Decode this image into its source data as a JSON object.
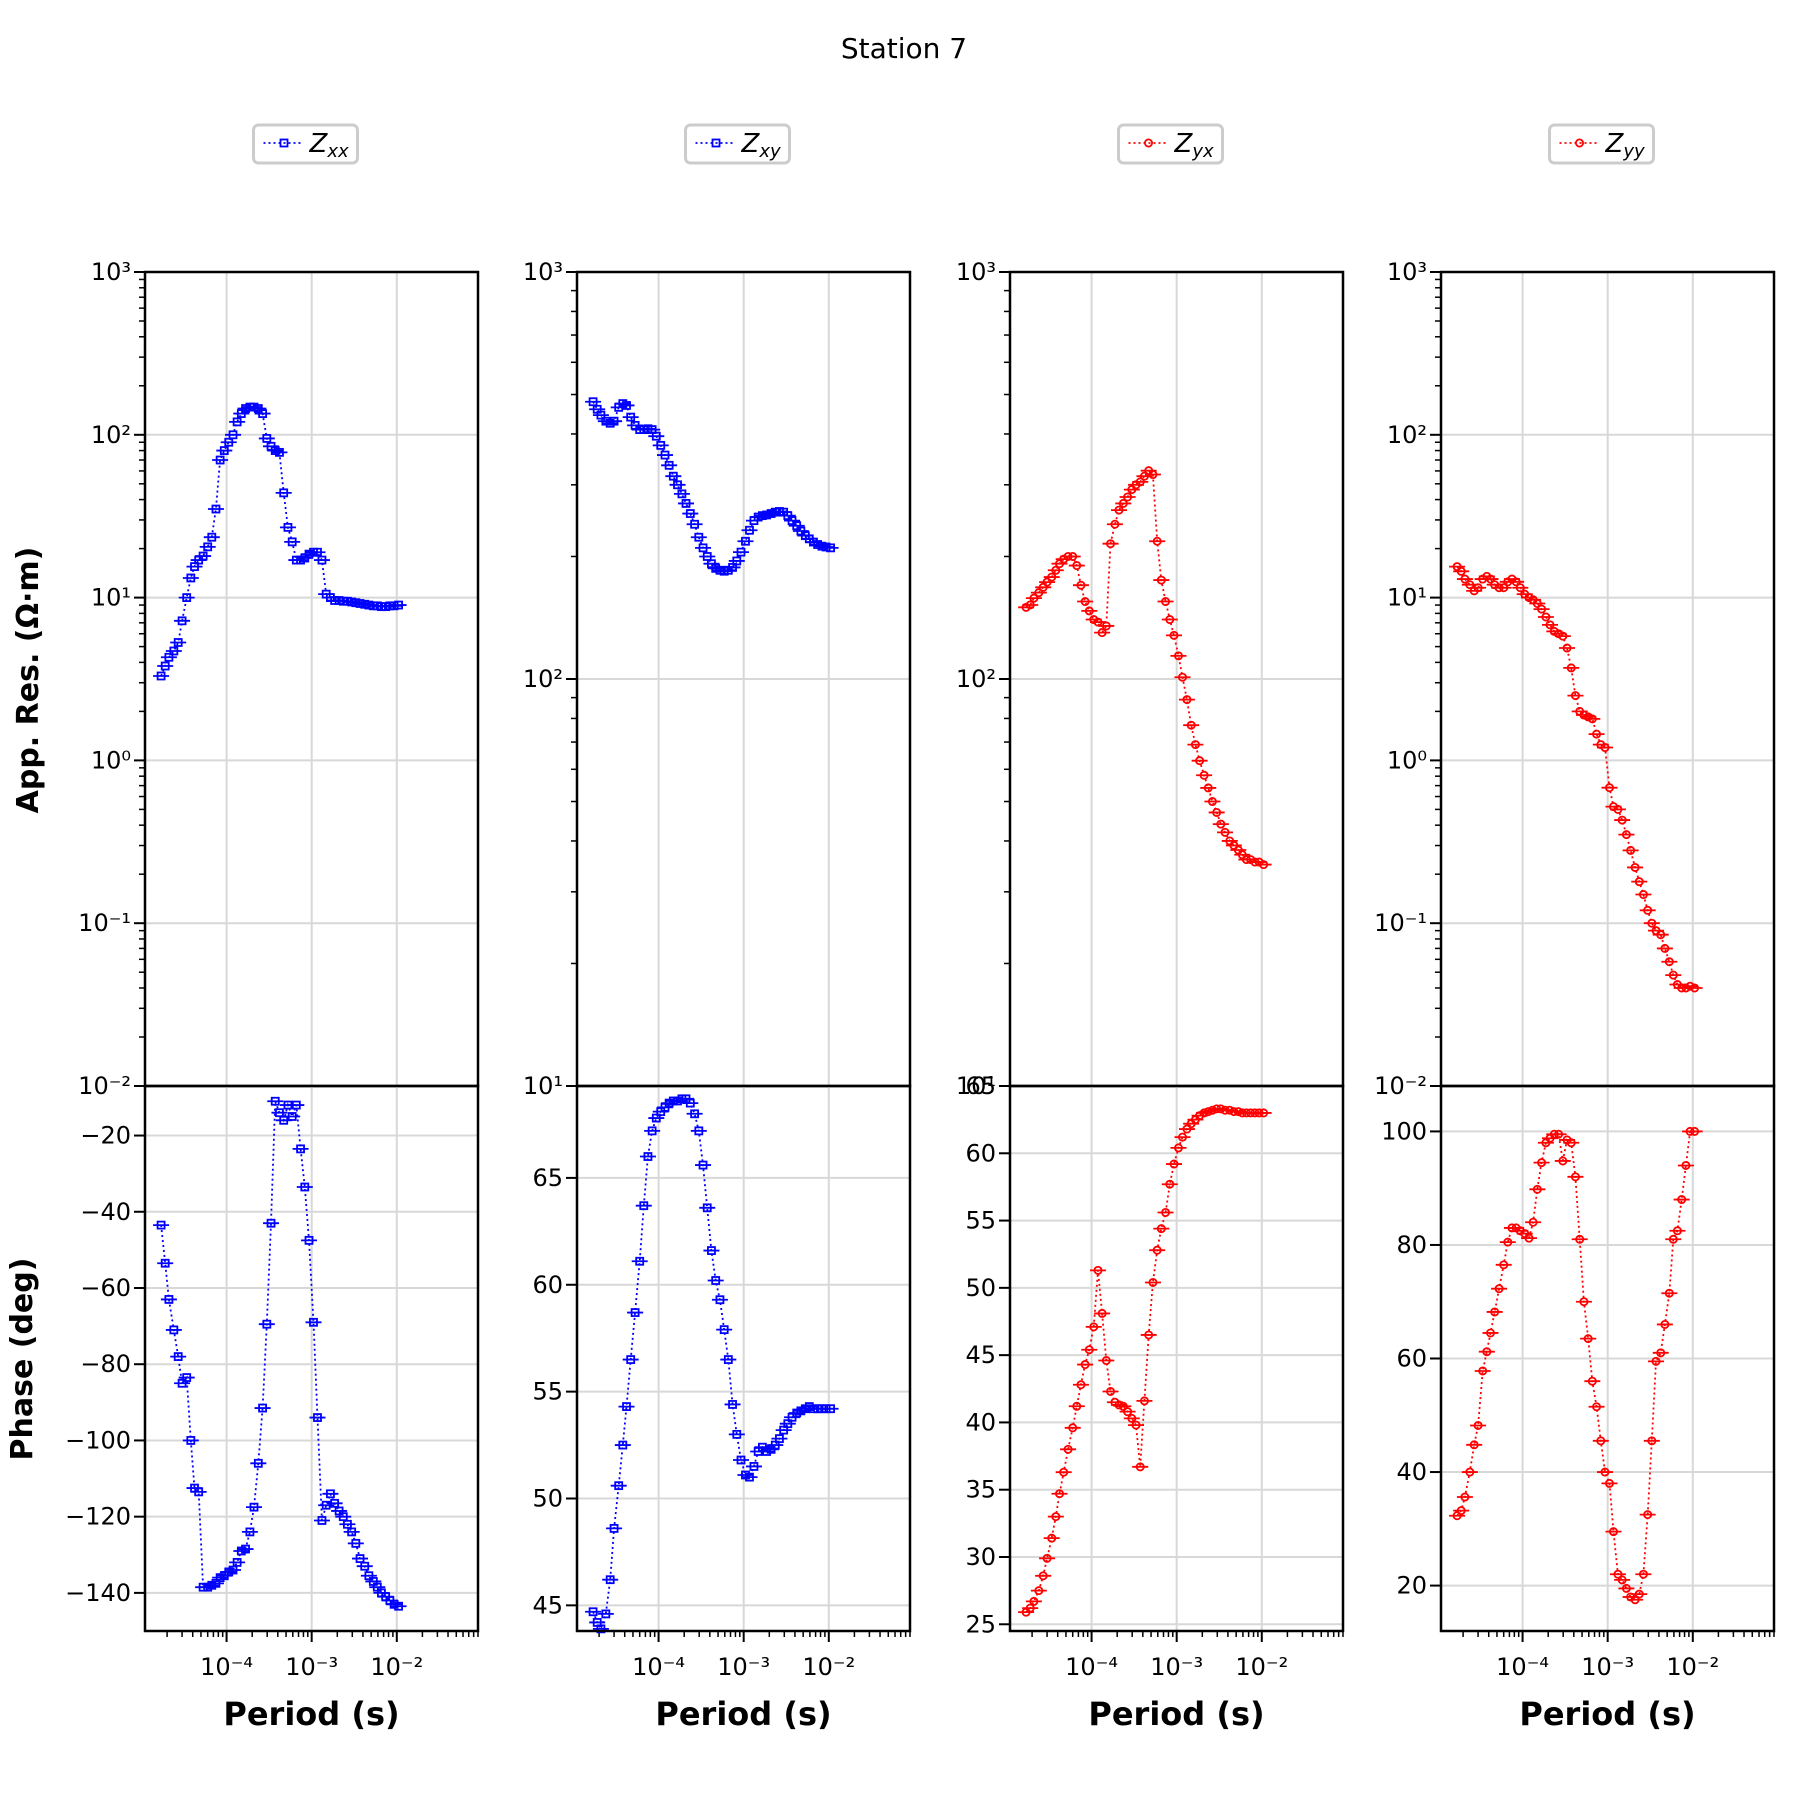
{
  "figure": {
    "title": "Station 7",
    "xlabel": "Period (s)",
    "ylabel_res": "App. Res. (Ω·m)",
    "ylabel_phase": "Phase (deg)"
  },
  "chart_data": [
    {
      "type": "scatter",
      "component": "Zxx",
      "legend": {
        "base": "Z",
        "sub": "xx"
      },
      "color": "#0000ff",
      "marker": "square",
      "xscale": "log",
      "xlim": [
        1.1e-05,
        0.09
      ],
      "xticks": [
        0.0001,
        0.001,
        0.01
      ],
      "res": {
        "yscale": "log",
        "ylim": [
          0.01,
          1000
        ],
        "yticks": [
          0.01,
          0.1,
          1,
          10,
          100,
          1000
        ],
        "x": [
          1.7e-05,
          1.9e-05,
          2.1e-05,
          2.4e-05,
          2.7e-05,
          3e-05,
          3.4e-05,
          3.8e-05,
          4.2e-05,
          4.7e-05,
          5.3e-05,
          6e-05,
          6.7e-05,
          7.5e-05,
          8.4e-05,
          9.4e-05,
          0.000106,
          0.000119,
          0.000133,
          0.000149,
          0.000167,
          0.000188,
          0.00021,
          0.000236,
          0.000265,
          0.000297,
          0.000333,
          0.000373,
          0.000418,
          0.000469,
          0.000526,
          0.00059,
          0.00066,
          0.00074,
          0.00083,
          0.00093,
          0.00105,
          0.00117,
          0.00132,
          0.00148,
          0.00166,
          0.00186,
          0.0021,
          0.00235,
          0.00263,
          0.00295,
          0.0033,
          0.0037,
          0.0042,
          0.0047,
          0.0053,
          0.0059,
          0.0066,
          0.0074,
          0.0083,
          0.0093,
          0.0105
        ],
        "y": [
          3.3,
          3.8,
          4.3,
          4.7,
          5.3,
          7.2,
          10.0,
          13.2,
          15.5,
          17.0,
          18.0,
          20.5,
          23.5,
          35.0,
          70.0,
          80.0,
          90.0,
          100.0,
          120.0,
          135.0,
          145.0,
          148.0,
          148.0,
          145.0,
          135.0,
          95.0,
          85.0,
          80.0,
          78.0,
          44.0,
          27.0,
          22.0,
          17.0,
          17.0,
          17.5,
          18.5,
          19.0,
          19.0,
          17.0,
          10.5,
          10.0,
          9.6,
          9.6,
          9.5,
          9.5,
          9.4,
          9.3,
          9.2,
          9.1,
          9.0,
          8.9,
          8.9,
          8.8,
          8.8,
          8.9,
          8.9,
          9.0
        ]
      },
      "phase": {
        "ylim": [
          -150,
          -7
        ],
        "yticks": [
          -140,
          -120,
          -100,
          -80,
          -60,
          -40,
          -20
        ],
        "x": [
          1.7e-05,
          1.9e-05,
          2.1e-05,
          2.4e-05,
          2.7e-05,
          3e-05,
          3.4e-05,
          3.8e-05,
          4.2e-05,
          4.7e-05,
          5.3e-05,
          6e-05,
          6.7e-05,
          7.5e-05,
          8.4e-05,
          9.4e-05,
          0.000106,
          0.000119,
          0.000133,
          0.000149,
          0.000167,
          0.000188,
          0.00021,
          0.000236,
          0.000265,
          0.000297,
          0.000333,
          0.000373,
          0.000418,
          0.000469,
          0.000526,
          0.00059,
          0.00066,
          0.00074,
          0.00083,
          0.00093,
          0.00105,
          0.00117,
          0.00132,
          0.00148,
          0.00166,
          0.00186,
          0.0021,
          0.00235,
          0.00263,
          0.00295,
          0.0033,
          0.0037,
          0.0042,
          0.0047,
          0.0053,
          0.0059,
          0.0066,
          0.0074,
          0.0083,
          0.0093,
          0.0105
        ],
        "y": [
          -43.5,
          -53.5,
          -63.0,
          -71.0,
          -78.0,
          -85.0,
          -83.5,
          -100.0,
          -112.5,
          -113.5,
          -138.5,
          -138.5,
          -138.0,
          -137.5,
          -136.0,
          -135.5,
          -134.5,
          -134.0,
          -132.0,
          -129.0,
          -128.5,
          -124.0,
          -117.5,
          -106.0,
          -91.5,
          -69.5,
          -43.0,
          -11.0,
          -14.0,
          -16.0,
          -12.0,
          -15.0,
          -12.0,
          -23.5,
          -33.5,
          -47.5,
          -69.0,
          -94.0,
          -121.0,
          -117.0,
          -114.0,
          -116.5,
          -118.5,
          -120.0,
          -122.0,
          -124.0,
          -127.0,
          -131.0,
          -133.0,
          -135.5,
          -137.0,
          -138.5,
          -140.0,
          -141.0,
          -142.0,
          -143.0,
          -143.5
        ]
      }
    },
    {
      "type": "scatter",
      "component": "Zxy",
      "legend": {
        "base": "Z",
        "sub": "xy"
      },
      "color": "#0000ff",
      "marker": "square",
      "xscale": "log",
      "xlim": [
        1.1e-05,
        0.09
      ],
      "xticks": [
        0.0001,
        0.001,
        0.01
      ],
      "res": {
        "yscale": "log",
        "ylim": [
          10,
          1000
        ],
        "yticks": [
          10,
          100,
          1000
        ],
        "x": [
          1.7e-05,
          1.9e-05,
          2.1e-05,
          2.4e-05,
          2.7e-05,
          3e-05,
          3.4e-05,
          3.8e-05,
          4.2e-05,
          4.7e-05,
          5.3e-05,
          6e-05,
          6.7e-05,
          7.5e-05,
          8.4e-05,
          9.4e-05,
          0.000106,
          0.000119,
          0.000133,
          0.000149,
          0.000167,
          0.000188,
          0.00021,
          0.000236,
          0.000265,
          0.000297,
          0.000333,
          0.000373,
          0.000418,
          0.000469,
          0.000526,
          0.00059,
          0.00066,
          0.00074,
          0.00083,
          0.00093,
          0.00105,
          0.00117,
          0.00132,
          0.00148,
          0.00166,
          0.00186,
          0.0021,
          0.00235,
          0.00263,
          0.00295,
          0.0033,
          0.0037,
          0.0042,
          0.0047,
          0.0053,
          0.0059,
          0.0066,
          0.0074,
          0.0083,
          0.0093,
          0.0105
        ],
        "y": [
          480,
          460,
          445,
          430,
          425,
          430,
          465,
          475,
          470,
          440,
          420,
          410,
          410,
          412,
          410,
          395,
          375,
          355,
          335,
          315,
          300,
          285,
          270,
          255,
          240,
          223,
          210,
          200,
          192,
          187,
          185,
          184,
          185,
          188,
          195,
          205,
          218,
          232,
          245,
          250,
          252,
          253,
          255,
          257,
          258,
          257,
          252,
          245,
          238,
          231,
          225,
          221,
          217,
          214,
          212,
          211,
          210
        ]
      },
      "phase": {
        "ylim": [
          43.8,
          69.3
        ],
        "yticks": [
          45,
          50,
          55,
          60,
          65
        ],
        "x": [
          1.7e-05,
          1.9e-05,
          2.1e-05,
          2.4e-05,
          2.7e-05,
          3e-05,
          3.4e-05,
          3.8e-05,
          4.2e-05,
          4.7e-05,
          5.3e-05,
          6e-05,
          6.7e-05,
          7.5e-05,
          8.4e-05,
          9.4e-05,
          0.000106,
          0.000119,
          0.000133,
          0.000149,
          0.000167,
          0.000188,
          0.00021,
          0.000236,
          0.000265,
          0.000297,
          0.000333,
          0.000373,
          0.000418,
          0.000469,
          0.000526,
          0.00059,
          0.00066,
          0.00074,
          0.00083,
          0.00093,
          0.00105,
          0.00117,
          0.00132,
          0.00148,
          0.00166,
          0.00186,
          0.0021,
          0.00235,
          0.00263,
          0.00295,
          0.0033,
          0.0037,
          0.0042,
          0.0047,
          0.0053,
          0.0059,
          0.0066,
          0.0074,
          0.0083,
          0.0093,
          0.0105
        ],
        "y": [
          44.7,
          44.2,
          43.9,
          44.6,
          46.2,
          48.6,
          50.6,
          52.5,
          54.3,
          56.5,
          58.7,
          61.1,
          63.7,
          66.0,
          67.2,
          67.8,
          68.1,
          68.3,
          68.5,
          68.6,
          68.6,
          68.7,
          68.7,
          68.5,
          68.0,
          67.2,
          65.6,
          63.6,
          61.6,
          60.2,
          59.3,
          57.9,
          56.5,
          54.4,
          53.0,
          51.8,
          51.1,
          51.0,
          51.5,
          52.2,
          52.4,
          52.2,
          52.3,
          52.5,
          52.8,
          53.2,
          53.5,
          53.8,
          54.0,
          54.1,
          54.2,
          54.3,
          54.2,
          54.2,
          54.2,
          54.2,
          54.2
        ]
      }
    },
    {
      "type": "scatter",
      "component": "Zyx",
      "legend": {
        "base": "Z",
        "sub": "yx"
      },
      "color": "#ff0000",
      "marker": "circle",
      "xscale": "log",
      "xlim": [
        1.1e-05,
        0.09
      ],
      "xticks": [
        0.0001,
        0.001,
        0.01
      ],
      "res": {
        "yscale": "log",
        "ylim": [
          10,
          1000
        ],
        "yticks": [
          10,
          100,
          1000
        ],
        "x": [
          1.7e-05,
          1.9e-05,
          2.1e-05,
          2.4e-05,
          2.7e-05,
          3e-05,
          3.4e-05,
          3.8e-05,
          4.2e-05,
          4.7e-05,
          5.3e-05,
          6e-05,
          6.7e-05,
          7.5e-05,
          8.4e-05,
          9.4e-05,
          0.000106,
          0.000119,
          0.000133,
          0.000149,
          0.000167,
          0.000188,
          0.00021,
          0.000236,
          0.000265,
          0.000297,
          0.000333,
          0.000373,
          0.000418,
          0.000469,
          0.000526,
          0.00059,
          0.00066,
          0.00074,
          0.00083,
          0.00093,
          0.00105,
          0.00117,
          0.00132,
          0.00148,
          0.00166,
          0.00186,
          0.0021,
          0.00235,
          0.00263,
          0.00295,
          0.0033,
          0.0037,
          0.0042,
          0.0047,
          0.0053,
          0.0059,
          0.0066,
          0.0074,
          0.0083,
          0.0093,
          0.0105
        ],
        "y": [
          150,
          152,
          158,
          163,
          168,
          173,
          178,
          185,
          192,
          197,
          200,
          200,
          190,
          170,
          155,
          147,
          140,
          138,
          130,
          135,
          215,
          240,
          260,
          270,
          280,
          292,
          300,
          305,
          315,
          325,
          318,
          218,
          175,
          155,
          140,
          128,
          114,
          101,
          89,
          77,
          69,
          63,
          58,
          54,
          50,
          47,
          44,
          42,
          40,
          39,
          38,
          37,
          36,
          36,
          35.5,
          35.5,
          35
        ]
      },
      "phase": {
        "ylim": [
          24.5,
          65
        ],
        "yticks": [
          25,
          30,
          35,
          40,
          45,
          50,
          55,
          60,
          65
        ],
        "x": [
          1.7e-05,
          1.9e-05,
          2.1e-05,
          2.4e-05,
          2.7e-05,
          3e-05,
          3.4e-05,
          3.8e-05,
          4.2e-05,
          4.7e-05,
          5.3e-05,
          6e-05,
          6.7e-05,
          7.5e-05,
          8.4e-05,
          9.4e-05,
          0.000106,
          0.000119,
          0.000133,
          0.000149,
          0.000167,
          0.000188,
          0.00021,
          0.000236,
          0.000265,
          0.000297,
          0.000333,
          0.000373,
          0.000418,
          0.000469,
          0.000526,
          0.00059,
          0.00066,
          0.00074,
          0.00083,
          0.00093,
          0.00105,
          0.00117,
          0.00132,
          0.00148,
          0.00166,
          0.00186,
          0.0021,
          0.00235,
          0.00263,
          0.00295,
          0.0033,
          0.0037,
          0.0042,
          0.0047,
          0.0053,
          0.0059,
          0.0066,
          0.0074,
          0.0083,
          0.0093,
          0.0105
        ],
        "y": [
          25.9,
          26.2,
          26.7,
          27.5,
          28.6,
          29.9,
          31.4,
          33.0,
          34.7,
          36.3,
          38.0,
          39.6,
          41.2,
          42.8,
          44.3,
          45.4,
          47.1,
          51.3,
          48.1,
          44.6,
          42.3,
          41.5,
          41.3,
          41.2,
          40.8,
          40.3,
          39.8,
          36.7,
          41.6,
          46.5,
          50.4,
          52.8,
          54.4,
          55.6,
          57.7,
          59.2,
          60.4,
          61.2,
          61.8,
          62.2,
          62.5,
          62.8,
          63.0,
          63.1,
          63.2,
          63.3,
          63.3,
          63.2,
          63.2,
          63.1,
          63.1,
          63.0,
          63.0,
          63.0,
          63.0,
          63.0,
          63.0
        ]
      }
    },
    {
      "type": "scatter",
      "component": "Zyy",
      "legend": {
        "base": "Z",
        "sub": "yy"
      },
      "color": "#ff0000",
      "marker": "circle",
      "xscale": "log",
      "xlim": [
        1.1e-05,
        0.09
      ],
      "xticks": [
        0.0001,
        0.001,
        0.01
      ],
      "res": {
        "yscale": "log",
        "ylim": [
          0.01,
          1000
        ],
        "yticks": [
          0.01,
          0.1,
          1,
          10,
          100,
          1000
        ],
        "x": [
          1.7e-05,
          1.9e-05,
          2.1e-05,
          2.4e-05,
          2.7e-05,
          3e-05,
          3.4e-05,
          3.8e-05,
          4.2e-05,
          4.7e-05,
          5.3e-05,
          6e-05,
          6.7e-05,
          7.5e-05,
          8.4e-05,
          9.4e-05,
          0.000106,
          0.000119,
          0.000133,
          0.000149,
          0.000167,
          0.000188,
          0.00021,
          0.000236,
          0.000265,
          0.000297,
          0.000333,
          0.000373,
          0.000418,
          0.000469,
          0.000526,
          0.00059,
          0.00066,
          0.00074,
          0.00083,
          0.00093,
          0.00105,
          0.00117,
          0.00132,
          0.00148,
          0.00166,
          0.00186,
          0.0021,
          0.00235,
          0.00263,
          0.00295,
          0.0033,
          0.0037,
          0.0042,
          0.0047,
          0.0053,
          0.0059,
          0.0066,
          0.0074,
          0.0083,
          0.0093,
          0.0105
        ],
        "y": [
          15.5,
          14.5,
          13.0,
          12.0,
          11.0,
          11.5,
          13.0,
          13.5,
          13.0,
          12.0,
          11.5,
          11.5,
          12.5,
          13.0,
          12.5,
          11.5,
          10.5,
          10.0,
          9.7,
          9.2,
          8.5,
          7.6,
          6.8,
          6.2,
          6.0,
          5.8,
          4.9,
          3.7,
          2.5,
          2.0,
          1.9,
          1.85,
          1.8,
          1.45,
          1.25,
          1.2,
          0.68,
          0.52,
          0.5,
          0.43,
          0.35,
          0.28,
          0.22,
          0.18,
          0.15,
          0.12,
          0.1,
          0.09,
          0.085,
          0.07,
          0.058,
          0.048,
          0.042,
          0.04,
          0.04,
          0.041,
          0.04
        ]
      },
      "phase": {
        "ylim": [
          12,
          108
        ],
        "yticks": [
          20,
          40,
          60,
          80,
          100
        ],
        "x": [
          1.7e-05,
          1.9e-05,
          2.1e-05,
          2.4e-05,
          2.7e-05,
          3e-05,
          3.4e-05,
          3.8e-05,
          4.2e-05,
          4.7e-05,
          5.3e-05,
          6e-05,
          6.7e-05,
          7.5e-05,
          8.4e-05,
          9.4e-05,
          0.000106,
          0.000119,
          0.000133,
          0.000149,
          0.000167,
          0.000188,
          0.00021,
          0.000236,
          0.000265,
          0.000297,
          0.000333,
          0.000373,
          0.000418,
          0.000469,
          0.000526,
          0.00059,
          0.00066,
          0.00074,
          0.00083,
          0.00093,
          0.00105,
          0.00117,
          0.00132,
          0.00148,
          0.00166,
          0.00186,
          0.0021,
          0.00235,
          0.00263,
          0.00295,
          0.0033,
          0.0037,
          0.0042,
          0.0047,
          0.0053,
          0.0059,
          0.0066,
          0.0074,
          0.0083,
          0.0093,
          0.0105
        ],
        "y": [
          32.3,
          33.2,
          35.6,
          40.0,
          44.8,
          48.2,
          57.8,
          61.2,
          64.5,
          68.2,
          72.3,
          76.5,
          80.5,
          83.0,
          83.0,
          82.5,
          82.0,
          81.2,
          84.0,
          89.8,
          94.5,
          98.0,
          98.8,
          99.5,
          99.5,
          94.8,
          98.5,
          98.0,
          92.0,
          81.0,
          70.0,
          63.5,
          56.0,
          51.5,
          45.5,
          40.0,
          38.0,
          29.5,
          22.0,
          21.0,
          19.5,
          18.0,
          17.5,
          18.5,
          22.0,
          32.5,
          45.5,
          59.5,
          61.0,
          66.0,
          71.5,
          81.0,
          82.5,
          88.0,
          94.0,
          100.0,
          100.0
        ]
      }
    }
  ]
}
